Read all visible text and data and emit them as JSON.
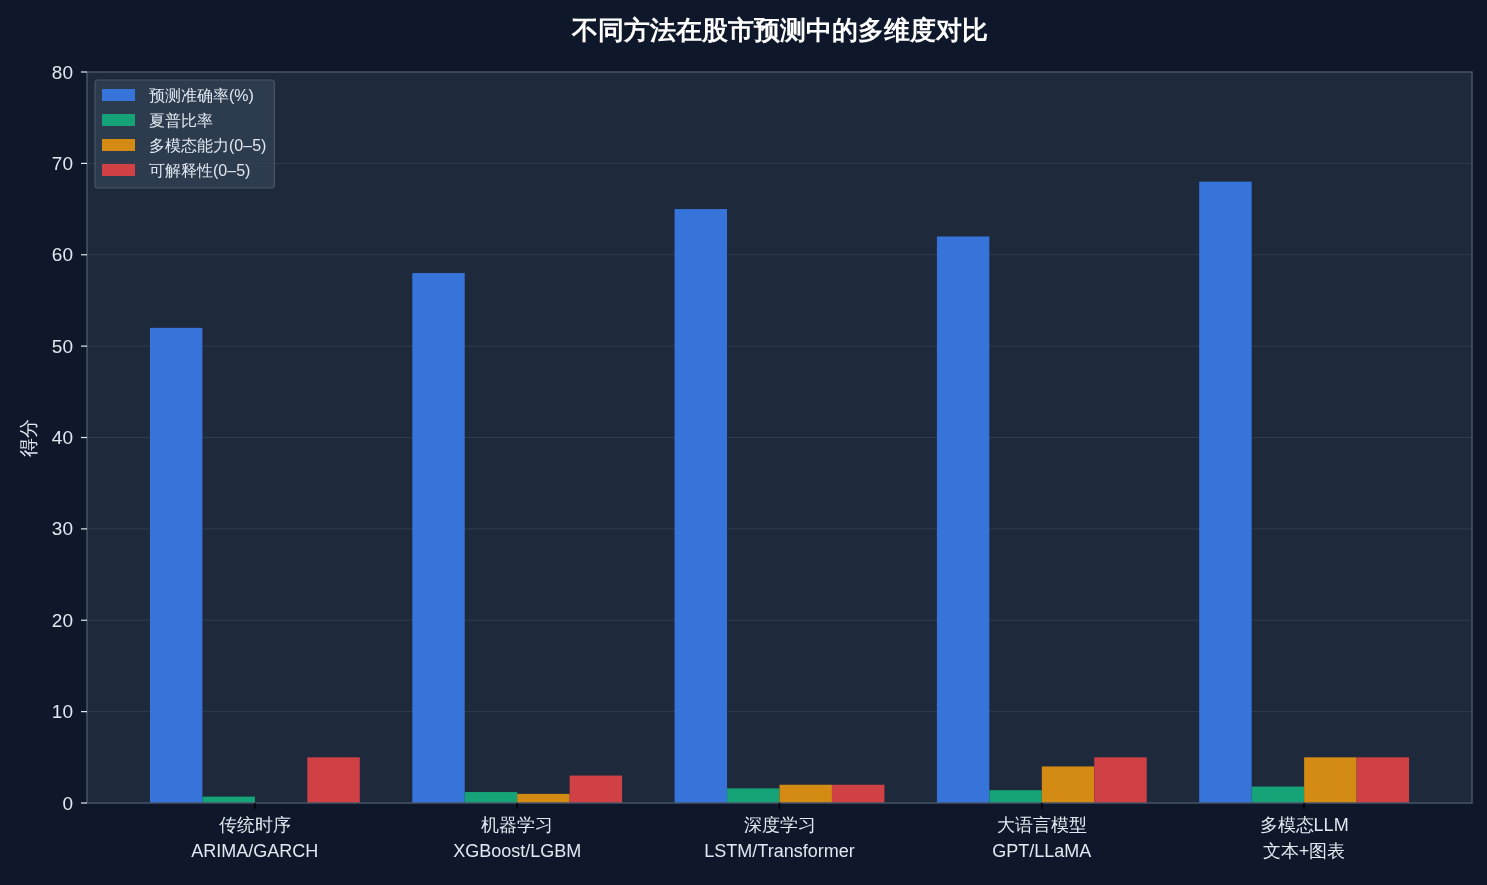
{
  "chart_data": {
    "type": "bar",
    "title": "不同方法在股市预测中的多维度对比",
    "ylabel": "得分",
    "categories": [
      "传统时序\nARIMA/GARCH",
      "机器学习\nXGBoost/LGBM",
      "深度学习\nLSTM/Transformer",
      "大语言模型\nGPT/LLaMA",
      "多模态LLM\n文本+图表"
    ],
    "series": [
      {
        "name": "预测准确率(%)",
        "color": "#3674d9",
        "values": [
          52,
          58,
          65,
          62,
          68
        ]
      },
      {
        "name": "夏普比率",
        "color": "#15a377",
        "values": [
          0.7,
          1.2,
          1.6,
          1.4,
          1.8
        ]
      },
      {
        "name": "多模态能力(0–5)",
        "color": "#d48b14",
        "values": [
          0,
          1,
          2,
          4,
          5
        ]
      },
      {
        "name": "可解释性(0–5)",
        "color": "#d04145",
        "values": [
          5,
          3,
          2,
          5,
          5
        ]
      }
    ],
    "ylim": [
      0,
      80
    ],
    "yticks": [
      0,
      10,
      20,
      30,
      40,
      50,
      60,
      70,
      80
    ],
    "grid": "y",
    "legend": "top left"
  }
}
